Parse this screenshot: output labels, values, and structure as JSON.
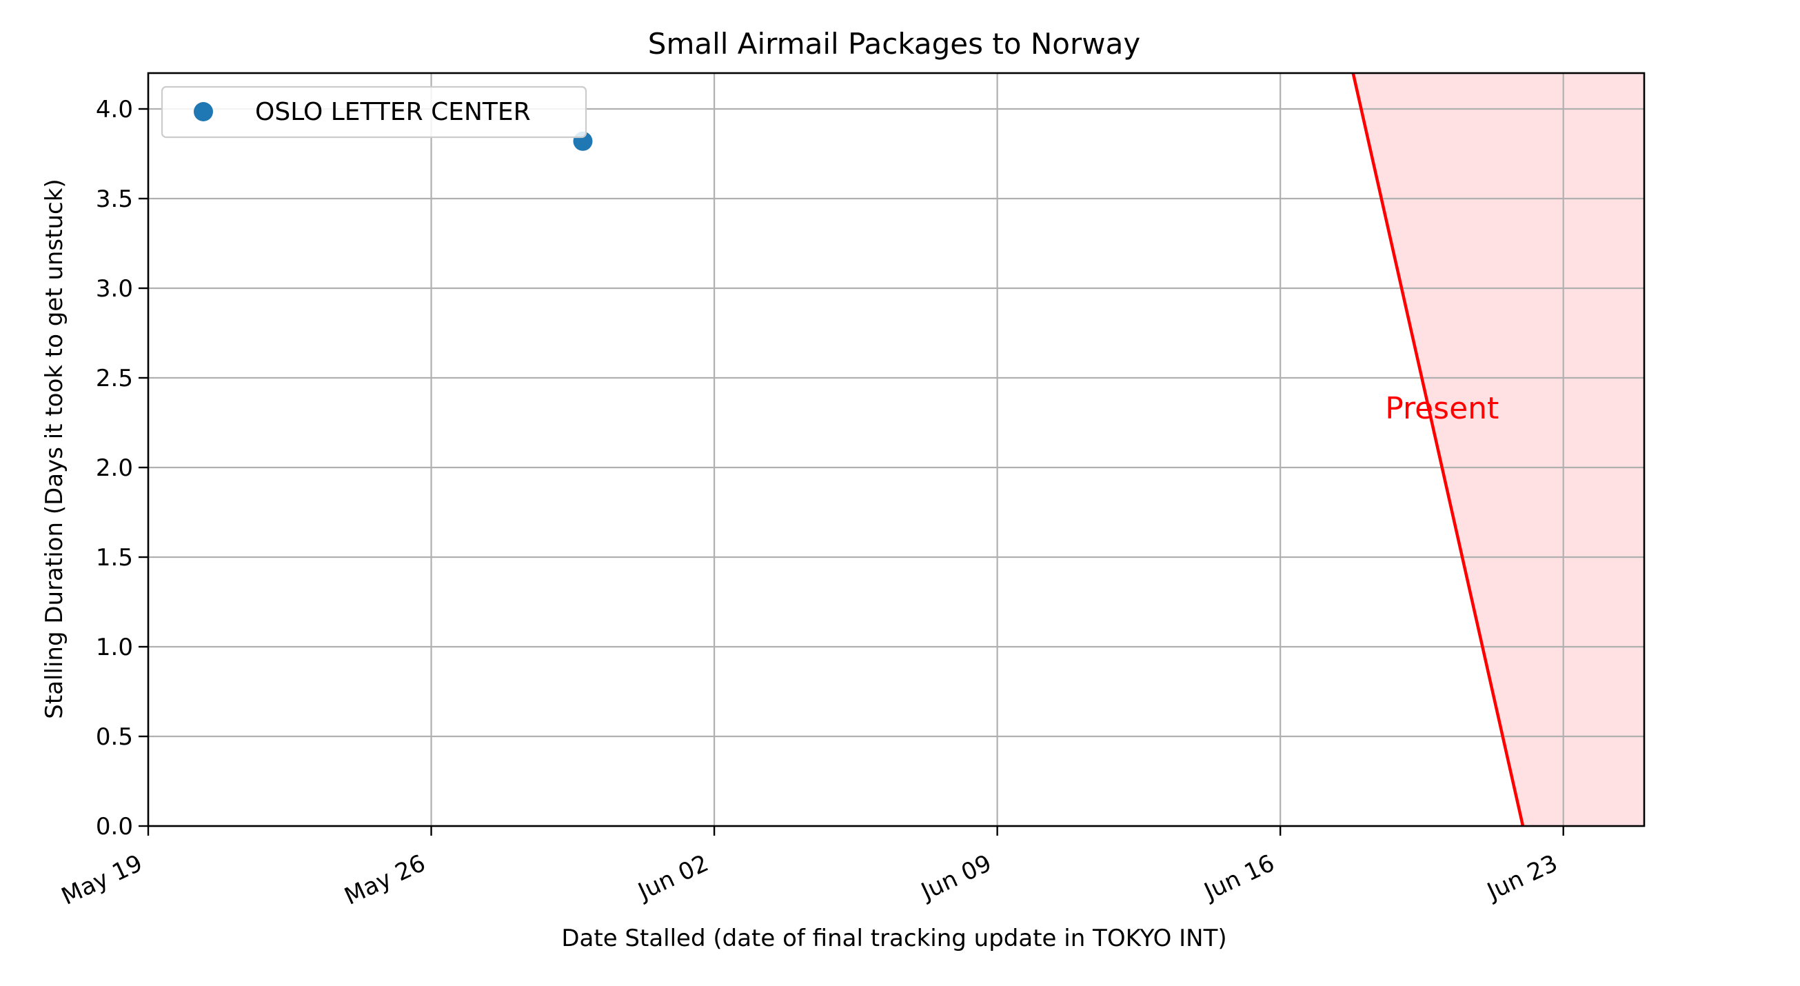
{
  "chart_data": {
    "type": "scatter",
    "title": "Small Airmail Packages to Norway",
    "xlabel": "Date Stalled (date of final tracking update in TOKYO INT)",
    "ylabel": "Stalling Duration (Days it took to get unstuck)",
    "xlim_days": [
      0,
      37
    ],
    "ylim": [
      0,
      4.2
    ],
    "x_ticks": [
      {
        "day": 0,
        "label": "May 19"
      },
      {
        "day": 7,
        "label": "May 26"
      },
      {
        "day": 14,
        "label": "Jun 02"
      },
      {
        "day": 21,
        "label": "Jun 09"
      },
      {
        "day": 28,
        "label": "Jun 16"
      },
      {
        "day": 35,
        "label": "Jun 23"
      }
    ],
    "y_ticks": [
      {
        "value": 0.0,
        "label": "0.0"
      },
      {
        "value": 0.5,
        "label": "0.5"
      },
      {
        "value": 1.0,
        "label": "1.0"
      },
      {
        "value": 1.5,
        "label": "1.5"
      },
      {
        "value": 2.0,
        "label": "2.0"
      },
      {
        "value": 2.5,
        "label": "2.5"
      },
      {
        "value": 3.0,
        "label": "3.0"
      },
      {
        "value": 3.5,
        "label": "3.5"
      },
      {
        "value": 4.0,
        "label": "4.0"
      }
    ],
    "grid": true,
    "legend_position": "top-left",
    "series": [
      {
        "name": "OSLO LETTER CENTER",
        "color": "#1f77b4",
        "points": [
          {
            "day": 10.75,
            "value": 3.82
          }
        ]
      }
    ],
    "present_region": {
      "label": "Present",
      "line_color": "#ff0000",
      "fill_color": "#ffe0e3",
      "top_day": 29.8,
      "bottom_day": 34.0,
      "label_day": 32.0,
      "label_value": 2.33
    }
  }
}
